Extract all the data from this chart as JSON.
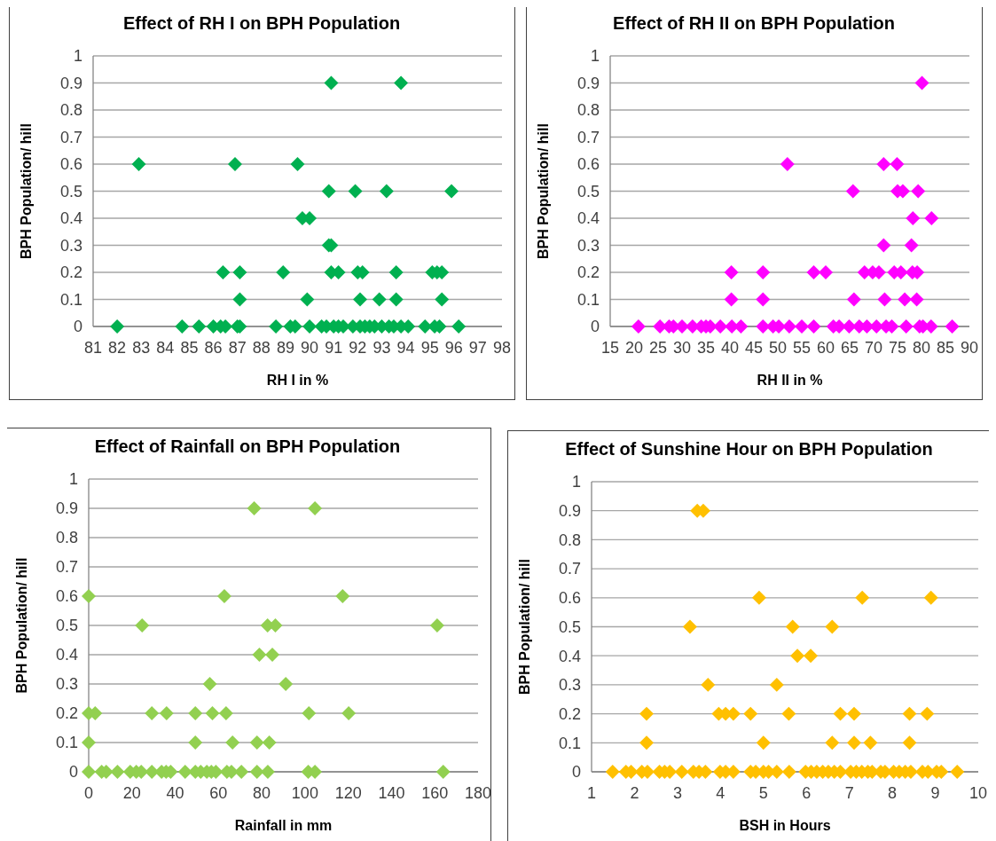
{
  "chart_data": [
    {
      "type": "scatter",
      "title": "Effect of RH I on BPH Population",
      "xlabel": "RH I in %",
      "ylabel": "BPH Population/ hill",
      "marker": "diamond",
      "grid": "y",
      "xlim": [
        81,
        98
      ],
      "xticks": [
        81,
        82,
        83,
        84,
        85,
        86,
        87,
        88,
        89,
        90,
        91,
        92,
        93,
        94,
        95,
        96,
        97,
        98
      ],
      "ylim": [
        0,
        1
      ],
      "yticks": [
        0,
        0.1,
        0.2,
        0.3,
        0.4,
        0.5,
        0.6,
        0.7,
        0.8,
        0.9,
        1
      ],
      "series": [
        {
          "color": "#00b050",
          "x": [
            90.9,
            93.8,
            82.9,
            86.9,
            89.5,
            90.8,
            91.9,
            93.2,
            95.9,
            89.7,
            90.0,
            90.8,
            90.9,
            86.4,
            87.1,
            88.9,
            90.9,
            91.2,
            92.0,
            92.2,
            93.6,
            95.1,
            95.3,
            95.5,
            87.1,
            89.9,
            92.1,
            92.9,
            93.6,
            95.5,
            82.0,
            84.7,
            85.4,
            86.0,
            86.3,
            86.5,
            87.0,
            87.1,
            88.6,
            89.2,
            89.4,
            90.0,
            90.5,
            90.7,
            91.0,
            91.2,
            91.4,
            91.8,
            92.1,
            92.3,
            92.5,
            92.7,
            93.0,
            93.3,
            93.5,
            93.8,
            94.1,
            94.8,
            95.2,
            95.4,
            96.2
          ],
          "values": [
            0.9,
            0.9,
            0.6,
            0.6,
            0.6,
            0.5,
            0.5,
            0.5,
            0.5,
            0.4,
            0.4,
            0.3,
            0.3,
            0.2,
            0.2,
            0.2,
            0.2,
            0.2,
            0.2,
            0.2,
            0.2,
            0.2,
            0.2,
            0.2,
            0.1,
            0.1,
            0.1,
            0.1,
            0.1,
            0.1,
            0,
            0,
            0,
            0,
            0,
            0,
            0,
            0,
            0,
            0,
            0,
            0,
            0,
            0,
            0,
            0,
            0,
            0,
            0,
            0,
            0,
            0,
            0,
            0,
            0,
            0,
            0,
            0,
            0,
            0,
            0
          ]
        }
      ]
    },
    {
      "type": "scatter",
      "title": "Effect of RH II on BPH Population",
      "xlabel": "RH II in %",
      "ylabel": "BPH Population/ hill",
      "marker": "diamond",
      "grid": "y",
      "xlim": [
        15,
        90
      ],
      "xticks": [
        15,
        20,
        25,
        30,
        35,
        40,
        45,
        50,
        55,
        60,
        65,
        70,
        75,
        80,
        85,
        90
      ],
      "ylim": [
        0,
        1
      ],
      "yticks": [
        0,
        0.1,
        0.2,
        0.3,
        0.4,
        0.5,
        0.6,
        0.7,
        0.8,
        0.9,
        1
      ],
      "series": [
        {
          "color": "#ff00ff",
          "x": [
            80.1,
            52.0,
            72.1,
            74.9,
            65.7,
            75.0,
            76.1,
            79.3,
            78.2,
            82.1,
            72.1,
            77.9,
            40.3,
            46.9,
            57.5,
            60.0,
            68.1,
            69.8,
            71.1,
            74.3,
            75.7,
            78.1,
            79.1,
            40.3,
            46.9,
            65.9,
            72.3,
            76.5,
            79.0,
            20.9,
            25.4,
            27.3,
            28.2,
            30.0,
            32.2,
            34.0,
            35.0,
            35.9,
            38.0,
            40.4,
            42.3,
            46.9,
            49.0,
            50.2,
            52.4,
            55.0,
            57.5,
            61.6,
            62.8,
            64.9,
            67.0,
            68.6,
            70.6,
            72.6,
            73.8,
            76.8,
            79.6,
            80.3,
            82.0,
            86.4
          ],
          "values": [
            0.9,
            0.6,
            0.6,
            0.6,
            0.5,
            0.5,
            0.5,
            0.5,
            0.4,
            0.4,
            0.3,
            0.3,
            0.2,
            0.2,
            0.2,
            0.2,
            0.2,
            0.2,
            0.2,
            0.2,
            0.2,
            0.2,
            0.2,
            0.1,
            0.1,
            0.1,
            0.1,
            0.1,
            0.1,
            0,
            0,
            0,
            0,
            0,
            0,
            0,
            0,
            0,
            0,
            0,
            0,
            0,
            0,
            0,
            0,
            0,
            0,
            0,
            0,
            0,
            0,
            0,
            0,
            0,
            0,
            0,
            0,
            0,
            0,
            0
          ]
        }
      ]
    },
    {
      "type": "scatter",
      "title": "Effect of Rainfall on BPH Population",
      "xlabel": "Rainfall in mm",
      "ylabel": "BPH Population/ hill",
      "marker": "diamond",
      "grid": "y",
      "xlim": [
        0,
        180
      ],
      "xticks": [
        0,
        20,
        40,
        60,
        80,
        100,
        120,
        140,
        160,
        180
      ],
      "ylim": [
        0,
        1
      ],
      "yticks": [
        0,
        0.1,
        0.2,
        0.3,
        0.4,
        0.5,
        0.6,
        0.7,
        0.8,
        0.9,
        1
      ],
      "series": [
        {
          "color": "#92d050",
          "x": [
            76.5,
            104.6,
            0,
            62.7,
            117.4,
            24.7,
            82.7,
            86.3,
            161.1,
            78.9,
            84.9,
            56.0,
            91.1,
            0,
            3,
            29.2,
            36.0,
            49.3,
            57.2,
            63.5,
            101.8,
            120.2,
            0,
            49.3,
            66.5,
            77.8,
            83.5,
            0,
            6.0,
            8.1,
            13.3,
            19.2,
            22.0,
            24.3,
            29.2,
            33.7,
            35.8,
            37.9,
            44.6,
            49.3,
            51.8,
            54.6,
            56.7,
            58.8,
            63.9,
            66.0,
            70.6,
            77.8,
            82.8,
            101.5,
            104.6,
            163.9
          ],
          "values": [
            0.9,
            0.9,
            0.6,
            0.6,
            0.6,
            0.5,
            0.5,
            0.5,
            0.5,
            0.4,
            0.4,
            0.3,
            0.3,
            0.2,
            0.2,
            0.2,
            0.2,
            0.2,
            0.2,
            0.2,
            0.2,
            0.2,
            0.1,
            0.1,
            0.1,
            0.1,
            0.1,
            0,
            0,
            0,
            0,
            0,
            0,
            0,
            0,
            0,
            0,
            0,
            0,
            0,
            0,
            0,
            0,
            0,
            0,
            0,
            0,
            0,
            0,
            0,
            0,
            0
          ]
        }
      ]
    },
    {
      "type": "scatter",
      "title": "Effect of Sunshine Hour on BPH Population",
      "xlabel": "BSH in Hours",
      "ylabel": "BPH Population/ hill",
      "marker": "diamond",
      "grid": "y",
      "xlim": [
        1,
        10
      ],
      "xticks": [
        1,
        2,
        3,
        4,
        5,
        6,
        7,
        8,
        9,
        10
      ],
      "ylim": [
        0,
        1
      ],
      "yticks": [
        0,
        0.1,
        0.2,
        0.3,
        0.4,
        0.5,
        0.6,
        0.7,
        0.8,
        0.9,
        1
      ],
      "series": [
        {
          "color": "#ffc000",
          "x": [
            3.46,
            3.6,
            4.9,
            7.3,
            8.9,
            3.29,
            5.68,
            6.6,
            5.79,
            6.1,
            3.71,
            5.31,
            2.28,
            3.96,
            4.12,
            4.3,
            4.7,
            5.59,
            6.79,
            7.11,
            8.4,
            8.81,
            2.28,
            5.0,
            6.6,
            7.11,
            7.49,
            8.4,
            1.49,
            1.8,
            1.92,
            2.17,
            2.3,
            2.58,
            2.7,
            2.82,
            3.1,
            3.37,
            3.5,
            3.65,
            3.99,
            4.12,
            4.3,
            4.7,
            4.82,
            5.0,
            5.12,
            5.31,
            5.6,
            5.98,
            6.11,
            6.24,
            6.38,
            6.51,
            6.65,
            6.79,
            7.03,
            7.16,
            7.29,
            7.43,
            7.53,
            7.73,
            7.83,
            8.03,
            8.16,
            8.3,
            8.43,
            8.7,
            8.83,
            9.03,
            9.14,
            9.51
          ],
          "values": [
            0.9,
            0.9,
            0.6,
            0.6,
            0.6,
            0.5,
            0.5,
            0.5,
            0.4,
            0.4,
            0.3,
            0.3,
            0.2,
            0.2,
            0.2,
            0.2,
            0.2,
            0.2,
            0.2,
            0.2,
            0.2,
            0.2,
            0.1,
            0.1,
            0.1,
            0.1,
            0.1,
            0.1,
            0,
            0,
            0,
            0,
            0,
            0,
            0,
            0,
            0,
            0,
            0,
            0,
            0,
            0,
            0,
            0,
            0,
            0,
            0,
            0,
            0,
            0,
            0,
            0,
            0,
            0,
            0,
            0,
            0,
            0,
            0,
            0,
            0,
            0,
            0,
            0,
            0,
            0,
            0,
            0,
            0,
            0,
            0,
            0
          ]
        }
      ]
    }
  ]
}
